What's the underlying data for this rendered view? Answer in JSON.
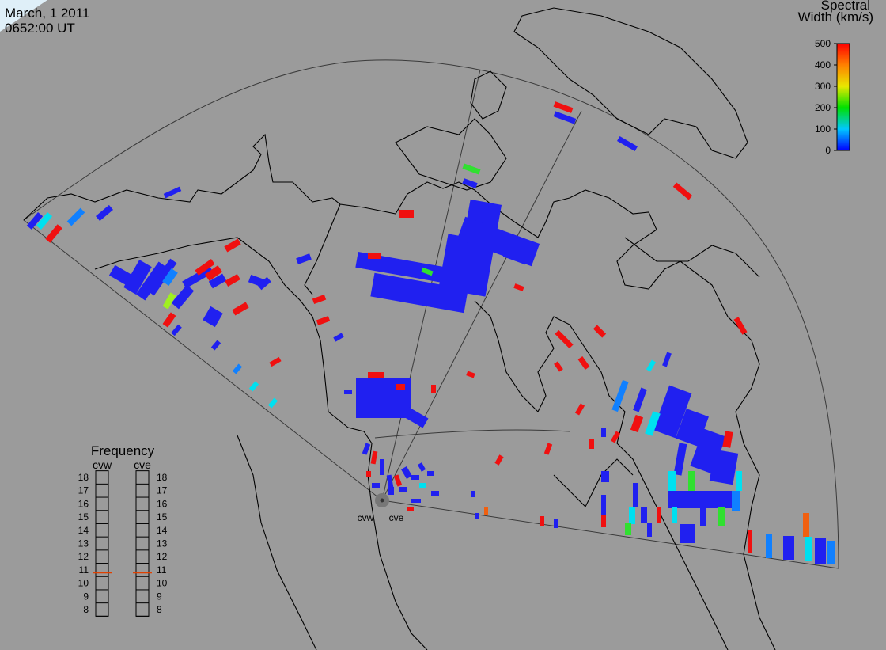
{
  "header": {
    "date": "March, 1 2011",
    "time": "0652:00 UT"
  },
  "color_scale": {
    "title_line1": "Spectral",
    "title_line2": "Width (km/s)",
    "range": [
      0,
      500
    ],
    "ticks": [
      0,
      100,
      200,
      300,
      400,
      500
    ]
  },
  "frequency_panel": {
    "title": "Frequency",
    "ticks": [
      18,
      17,
      16,
      15,
      14,
      13,
      12,
      11,
      10,
      9,
      8
    ],
    "radars": [
      {
        "name": "cvw",
        "value": 10.8
      },
      {
        "name": "cve",
        "value": 10.8
      }
    ]
  },
  "sites": [
    {
      "label": "cvw"
    },
    {
      "label": "cve"
    }
  ]
}
